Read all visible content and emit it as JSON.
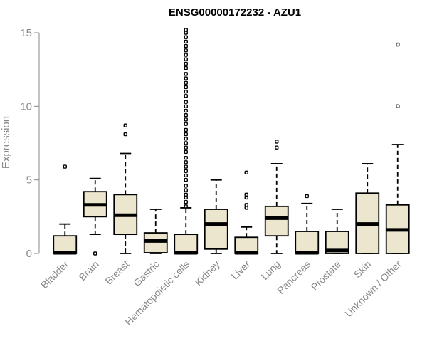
{
  "chart_data": {
    "type": "boxplot",
    "title": "ENSG00000172232 - AZU1",
    "xlabel": "",
    "ylabel": "Expression",
    "ylim": [
      0,
      15.2
    ],
    "yticks": [
      0,
      5,
      10,
      15
    ],
    "colors": {
      "box_fill": "#ede6cf",
      "stroke": "#000000",
      "axis": "#888888"
    },
    "categories": [
      "Bladder",
      "Brain",
      "Breast",
      "Gastric",
      "Hematopoietic cells",
      "Kidney",
      "Liver",
      "Lung",
      "Pancreas",
      "Prostate",
      "Skin",
      "Unknown / Other"
    ],
    "boxes": [
      {
        "name": "Bladder",
        "q1": 0,
        "median": 0.05,
        "q3": 1.2,
        "whisker_low": 0,
        "whisker_high": 2.0,
        "outliers": [
          5.9
        ]
      },
      {
        "name": "Brain",
        "q1": 2.5,
        "median": 3.3,
        "q3": 4.2,
        "whisker_low": 1.3,
        "whisker_high": 5.1,
        "outliers": [
          0.0
        ]
      },
      {
        "name": "Breast",
        "q1": 1.3,
        "median": 2.6,
        "q3": 4.0,
        "whisker_low": 0,
        "whisker_high": 6.8,
        "outliers": [
          8.1,
          8.7
        ]
      },
      {
        "name": "Gastric",
        "q1": 0.05,
        "median": 0.85,
        "q3": 1.4,
        "whisker_low": 0,
        "whisker_high": 3.0,
        "outliers": []
      },
      {
        "name": "Hematopoietic cells",
        "q1": 0,
        "median": 0.05,
        "q3": 1.3,
        "whisker_low": 0,
        "whisker_high": 3.1,
        "outliers": [
          3.2,
          3.5,
          3.8,
          4.0,
          4.3,
          4.6,
          5.0,
          5.3,
          5.6,
          5.9,
          6.2,
          6.5,
          6.9,
          7.2,
          7.5,
          7.8,
          8.1,
          8.4,
          8.8,
          9.1,
          9.4,
          9.7,
          10.0,
          10.3,
          10.7,
          11.0,
          11.3,
          11.6,
          11.9,
          12.2,
          12.6,
          12.9,
          13.2,
          13.5,
          13.8,
          14.1,
          14.4,
          14.7,
          15.0,
          15.2
        ]
      },
      {
        "name": "Kidney",
        "q1": 0.3,
        "median": 2.0,
        "q3": 3.0,
        "whisker_low": 0,
        "whisker_high": 5.0,
        "outliers": []
      },
      {
        "name": "Liver",
        "q1": 0,
        "median": 0.05,
        "q3": 1.1,
        "whisker_low": 0,
        "whisker_high": 1.8,
        "outliers": [
          3.1,
          3.3,
          3.8,
          4.0,
          5.5
        ]
      },
      {
        "name": "Lung",
        "q1": 1.2,
        "median": 2.4,
        "q3": 3.2,
        "whisker_low": 0,
        "whisker_high": 6.1,
        "outliers": [
          7.2,
          7.6
        ]
      },
      {
        "name": "Pancreas",
        "q1": 0,
        "median": 0.05,
        "q3": 1.5,
        "whisker_low": 0,
        "whisker_high": 3.4,
        "outliers": [
          3.9
        ]
      },
      {
        "name": "Prostate",
        "q1": 0,
        "median": 0.2,
        "q3": 1.5,
        "whisker_low": 0,
        "whisker_high": 3.0,
        "outliers": []
      },
      {
        "name": "Skin",
        "q1": 0,
        "median": 2.0,
        "q3": 4.1,
        "whisker_low": 0,
        "whisker_high": 6.1,
        "outliers": []
      },
      {
        "name": "Unknown / Other",
        "q1": 0,
        "median": 1.6,
        "q3": 3.3,
        "whisker_low": 0,
        "whisker_high": 7.4,
        "outliers": [
          10.0,
          14.2
        ]
      }
    ]
  }
}
